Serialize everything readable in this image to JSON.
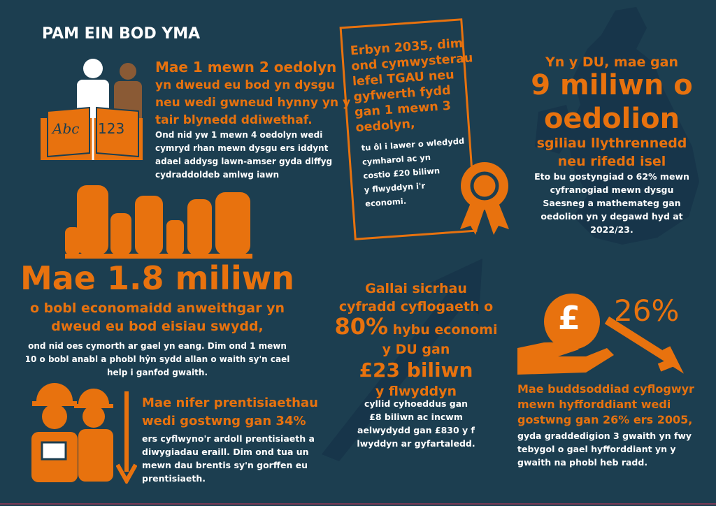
{
  "colors": {
    "background": "#1c3e50",
    "accent": "#e8720e",
    "text": "#ffffff"
  },
  "title": "PAM EIN BOD YMA",
  "learning": {
    "icon": "book-with-people-icon",
    "book_left": "Abc",
    "book_right": "123",
    "headline": "Mae 1 mewn 2 oedolyn",
    "sub": [
      "yn dweud eu bod yn dysgu",
      "neu wedi gwneud hynny yn y",
      "tair blynedd ddiwethaf."
    ],
    "body": [
      "Ond nid yw 1 mewn 4 oedolyn wedi",
      "cymryd rhan mewn dysgu ers iddynt",
      "adael addysg lawn-amser gyda diffyg",
      "cydraddoldeb amlwg iawn"
    ]
  },
  "jobs": {
    "icon": "raised-hands-icon",
    "headline": "Mae 1.8 miliwn",
    "sub": [
      "o bobl economaidd anweithgar yn",
      "dweud eu bod eisiau swydd,"
    ],
    "body": [
      "ond nid oes cymorth ar gael yn eang. Dim ond 1 mewn",
      "10 o bobl anabl a phobl hŷn sydd allan o waith sy'n cael",
      "help i ganfod gwaith."
    ]
  },
  "apprenticeships": {
    "icon": "workers-icon",
    "sub": [
      "Mae nifer prentisiaethau",
      "wedi gostwng gan 34%"
    ],
    "body": [
      "ers cyflwyno'r ardoll prentisiaeth a",
      "diwygiadau eraill. Dim ond tua un",
      "mewn dau brentis sy'n gorffen eu",
      "prentisiaeth."
    ]
  },
  "certificate": {
    "icon": "award-rosette-icon",
    "sub": [
      "Erbyn 2035, dim",
      "ond cymwysterau",
      "lefel TGAU neu",
      "gyfwerth fydd",
      "gan 1 mewn 3",
      "oedolyn,"
    ],
    "body": [
      "tu ôl i lawer o wledydd",
      "cymharol ac yn",
      "costio £20 biliwn",
      "y flwyddyn i'r",
      "economi."
    ]
  },
  "literacy": {
    "icon": "uk-map-icon",
    "intro": "Yn y DU, mae gan",
    "headline": [
      "9 miliwn o",
      "oedolion"
    ],
    "sub": [
      "sgiliau llythrennedd",
      "neu rifedd isel"
    ],
    "body": [
      "Eto bu gostyngiad o 62% mewn",
      "cyfranogiad mewn dysgu",
      "Saesneg a mathemateg gan",
      "oedolion yn y degawd hyd at",
      "2022/23."
    ]
  },
  "employment": {
    "icon": "rising-arrow-icon",
    "l1": "Gallai sicrhau",
    "l2": "cyfradd cyflogaeth o",
    "pct": "80%",
    "l3": "hybu economi",
    "l4": "y DU gan",
    "big": "£23 biliwn",
    "l5": "y flwyddyn",
    "body": [
      "cyllid cyhoeddus gan",
      "£8 biliwn ac incwm",
      "aelwydydd gan £830 y f",
      "lwyddyn ar gyfartaledd."
    ]
  },
  "training": {
    "icon": "hand-pound-coin-icon",
    "coin": "£",
    "pct": "26%",
    "sub": [
      "Mae buddsoddiad cyflogwyr",
      "mewn hyfforddiant wedi",
      "gostwng gan 26% ers 2005,"
    ],
    "body": [
      "gyda graddedigion 3 gwaith yn fwy",
      "tebygol o gael hyfforddiant yn y",
      "gwaith na phobl heb radd."
    ]
  }
}
